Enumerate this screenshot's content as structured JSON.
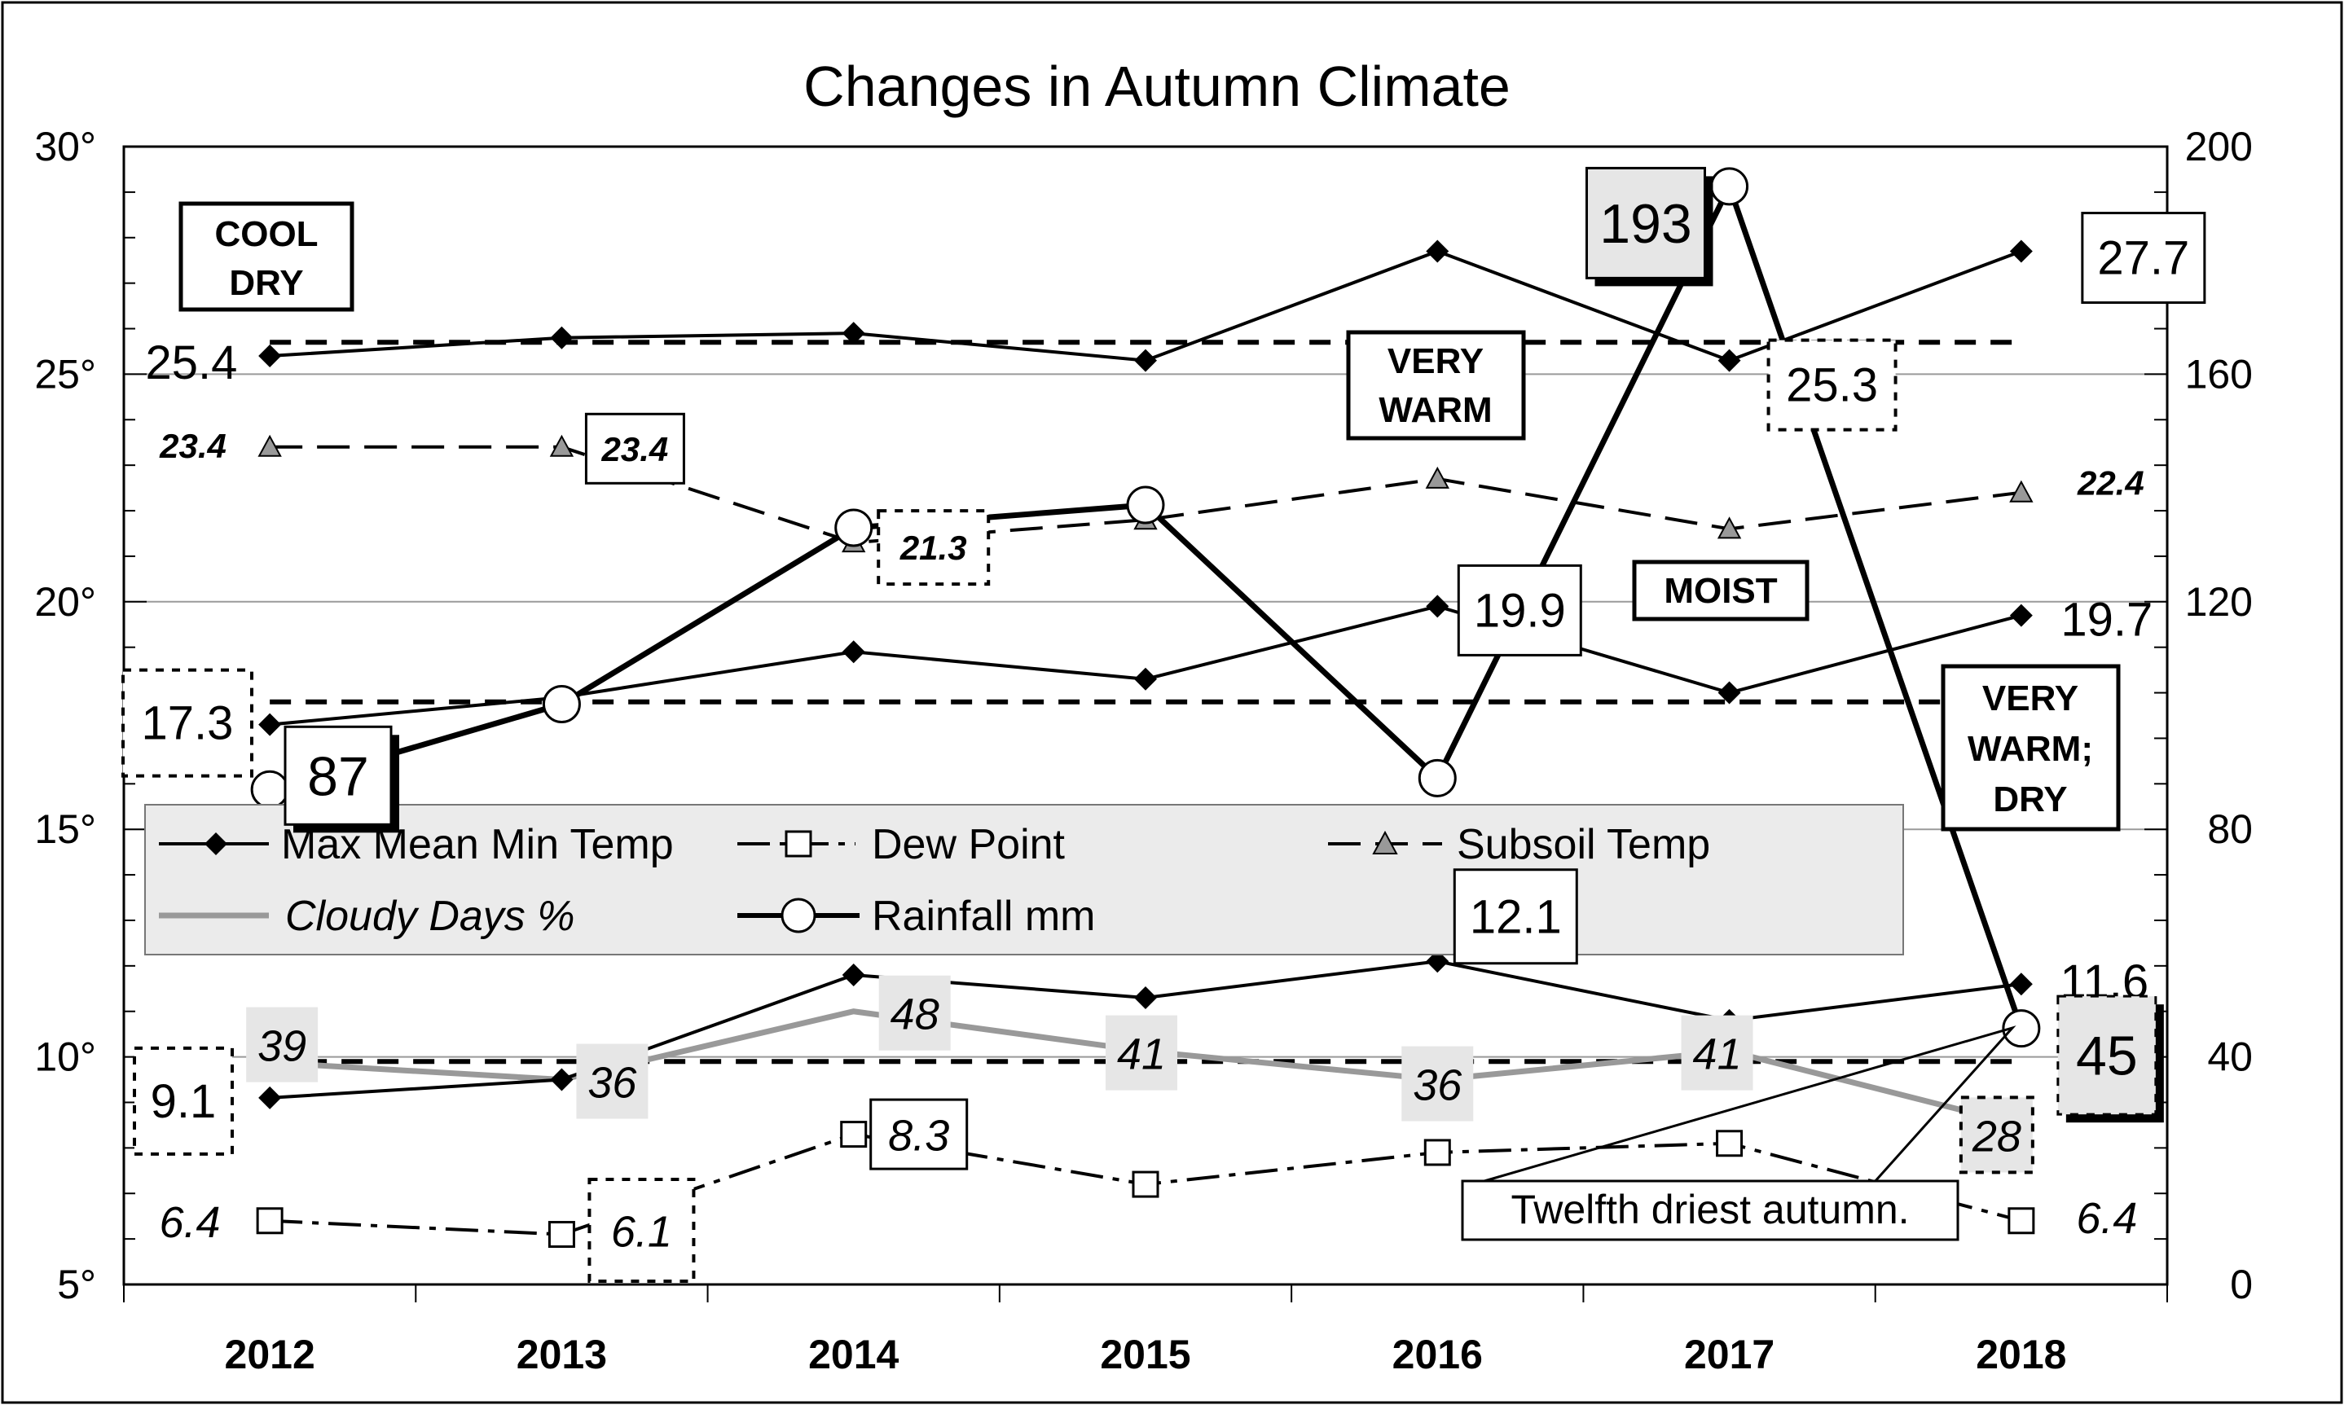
{
  "chart_data": {
    "type": "line",
    "title": "Changes in Autumn Climate",
    "categories": [
      "2012",
      "2013",
      "2014",
      "2015",
      "2016",
      "2017",
      "2018"
    ],
    "y_left": {
      "min": 5,
      "max": 30,
      "step": 5,
      "ticks": [
        "5°",
        "10°",
        "15°",
        "20°",
        "25°",
        "30°"
      ]
    },
    "y_right": {
      "min": 0,
      "max": 200,
      "step": 40,
      "ticks": [
        "0",
        "40",
        "80",
        "120",
        "160",
        "200"
      ]
    },
    "series": [
      {
        "name": "Max Mean Min Temp",
        "key": "max",
        "axis": "left",
        "values": [
          25.4,
          25.8,
          25.9,
          25.3,
          27.7,
          25.3,
          27.7
        ]
      },
      {
        "name": "Max Mean Min Temp",
        "key": "mean",
        "axis": "left",
        "values": [
          17.3,
          17.9,
          18.9,
          18.3,
          19.9,
          18.0,
          19.7
        ]
      },
      {
        "name": "Max Mean Min Temp",
        "key": "min",
        "axis": "left",
        "values": [
          9.1,
          9.5,
          11.8,
          11.3,
          12.1,
          10.8,
          11.6
        ]
      },
      {
        "name": "Dew Point",
        "key": "dew",
        "axis": "left",
        "values": [
          6.4,
          6.1,
          8.3,
          7.2,
          7.9,
          8.1,
          6.4
        ]
      },
      {
        "name": "Subsoil Temp",
        "key": "subsoil",
        "axis": "left",
        "values": [
          23.4,
          23.4,
          21.3,
          21.8,
          22.7,
          21.6,
          22.4
        ]
      },
      {
        "name": "Cloudy Days %",
        "key": "cloudy",
        "axis": "right",
        "values": [
          39,
          36,
          48,
          41,
          36,
          41,
          28
        ]
      },
      {
        "name": "Rainfall mm",
        "key": "rain",
        "axis": "right",
        "values": [
          87,
          102,
          133,
          137,
          89,
          193,
          45
        ]
      }
    ],
    "averages": [
      {
        "key": "avg_max",
        "axis": "left",
        "value": 25.7
      },
      {
        "key": "avg_mean",
        "axis": "left",
        "value": 17.8
      },
      {
        "key": "avg_min",
        "axis": "left",
        "value": 9.9
      }
    ],
    "data_labels": {
      "max_first": "25.4",
      "max_last": "27.7",
      "max_2017": "25.3",
      "mean_first": "17.3",
      "mean_2016": "19.9",
      "mean_last": "19.7",
      "min_first": "9.1",
      "min_2016": "12.1",
      "min_last": "11.6",
      "dew_first": "6.4",
      "dew_2013": "6.1",
      "dew_2014": "8.3",
      "dew_last": "6.4",
      "sub_first": "23.4",
      "sub_2013": "23.4",
      "sub_2014": "21.3",
      "sub_last": "22.4",
      "cloudy": [
        "39",
        "36",
        "48",
        "41",
        "36",
        "41",
        "28"
      ],
      "rain_first": "87",
      "rain_2017": "193",
      "rain_last": "45"
    },
    "notes": {
      "cool_dry_1": "COOL",
      "cool_dry_2": "DRY",
      "very_warm_1": "VERY",
      "very_warm_2": "WARM",
      "moist": "MOIST",
      "vwd_1": "VERY",
      "vwd_2": "WARM;",
      "vwd_3": "DRY"
    },
    "annotation": "Twelfth driest autumn.",
    "legend": {
      "placement": "center-left",
      "entries": [
        "Max Mean Min Temp",
        "Dew Point",
        "Subsoil Temp",
        "Cloudy Days %",
        "Rainfall mm"
      ]
    },
    "grid": true
  }
}
